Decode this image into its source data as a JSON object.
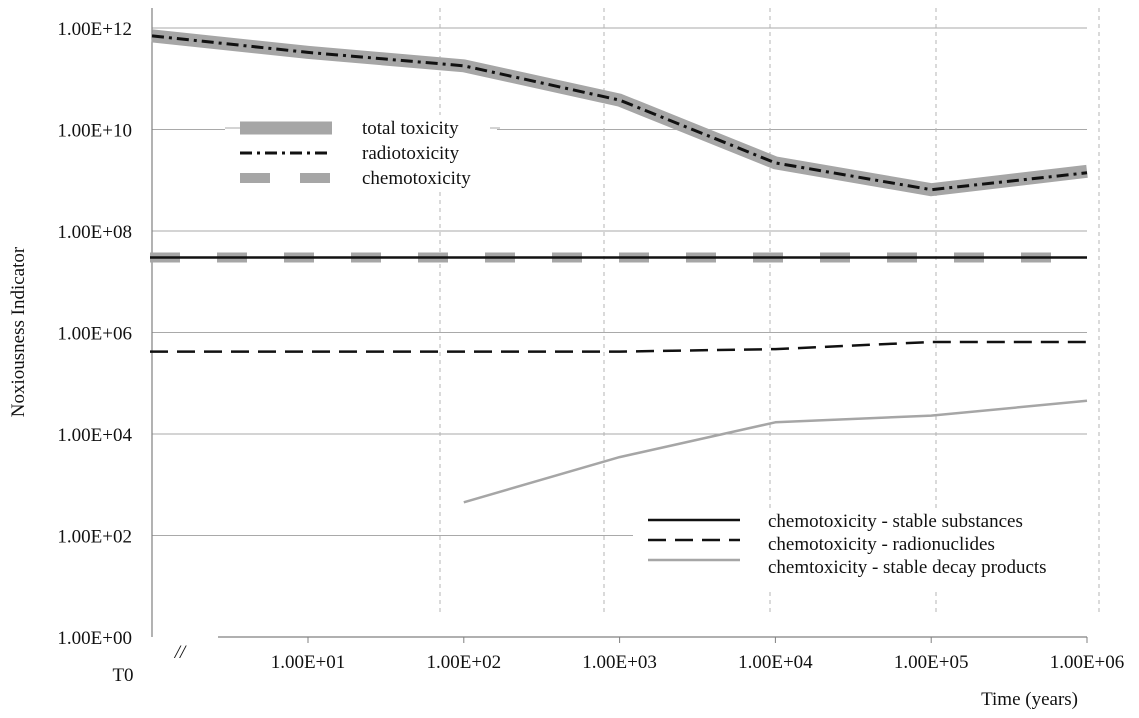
{
  "chart_data": {
    "type": "line",
    "title": "",
    "xlabel": "Time (years)",
    "ylabel": "Noxiousness Indicator",
    "x_scale": "log",
    "y_scale": "log",
    "ylim": [
      1,
      1000000000000
    ],
    "grid": {
      "horizontal": true,
      "vertical": "dashed"
    },
    "y_tick_labels": [
      "1.00E+00",
      "1.00E+02",
      "1.00E+04",
      "1.00E+06",
      "1.00E+08",
      "1.00E+10",
      "1.00E+12"
    ],
    "x_tick_labels": [
      "T0",
      "1.00E+01",
      "1.00E+02",
      "1.00E+03",
      "1.00E+04",
      "1.00E+05",
      "1.00E+06"
    ],
    "axis_break_mark": "//",
    "legend_top": {
      "placement": "upper-left",
      "entries": [
        "total toxicity",
        "radiotoxicity",
        "chemotoxicity"
      ]
    },
    "legend_bottom": {
      "placement": "lower-right",
      "entries": [
        "chemotoxicity - stable substances",
        "chemotoxicity - radionuclides",
        "chemtoxicity - stable decay products"
      ]
    },
    "series": [
      {
        "name": "total toxicity",
        "color": "#a6a6a6",
        "style": "thick-solid",
        "points": [
          [
            "T0",
            700000000000
          ],
          [
            10,
            330000000000
          ],
          [
            100,
            180000000000
          ],
          [
            1000,
            38000000000
          ],
          [
            10000,
            2200000000
          ],
          [
            100000,
            650000000
          ],
          [
            1000000,
            1500000000
          ]
        ]
      },
      {
        "name": "radiotoxicity",
        "color": "#111111",
        "style": "dash-dot",
        "points": [
          [
            "T0",
            700000000000
          ],
          [
            10,
            330000000000
          ],
          [
            100,
            180000000000
          ],
          [
            1000,
            38000000000
          ],
          [
            10000,
            2200000000
          ],
          [
            100000,
            650000000
          ],
          [
            1000000,
            1400000000
          ]
        ]
      },
      {
        "name": "chemotoxicity",
        "color": "#a6a6a6",
        "style": "thick-dashed",
        "points": [
          [
            "T0",
            30000000
          ],
          [
            10,
            30000000
          ],
          [
            100,
            30000000
          ],
          [
            1000,
            30000000
          ],
          [
            10000,
            30000000
          ],
          [
            100000,
            30000000
          ],
          [
            1000000,
            30000000
          ]
        ]
      },
      {
        "name": "chemotoxicity - stable substances",
        "color": "#111111",
        "style": "solid",
        "points": [
          [
            "T0",
            30000000
          ],
          [
            10,
            30000000
          ],
          [
            100,
            30000000
          ],
          [
            1000,
            30000000
          ],
          [
            10000,
            30000000
          ],
          [
            100000,
            30000000
          ],
          [
            1000000,
            30000000
          ]
        ]
      },
      {
        "name": "chemotoxicity - radionuclides",
        "color": "#111111",
        "style": "dashed",
        "points": [
          [
            "T0",
            420000
          ],
          [
            10,
            420000
          ],
          [
            100,
            420000
          ],
          [
            1000,
            420000
          ],
          [
            10000,
            470000
          ],
          [
            100000,
            650000
          ],
          [
            1000000,
            650000
          ]
        ]
      },
      {
        "name": "chemtoxicity - stable decay products",
        "color": "#a6a6a6",
        "style": "solid",
        "points": [
          [
            100,
            450
          ],
          [
            1000,
            3500
          ],
          [
            10000,
            17000
          ],
          [
            100000,
            23000
          ],
          [
            1000000,
            45000
          ]
        ]
      }
    ]
  }
}
